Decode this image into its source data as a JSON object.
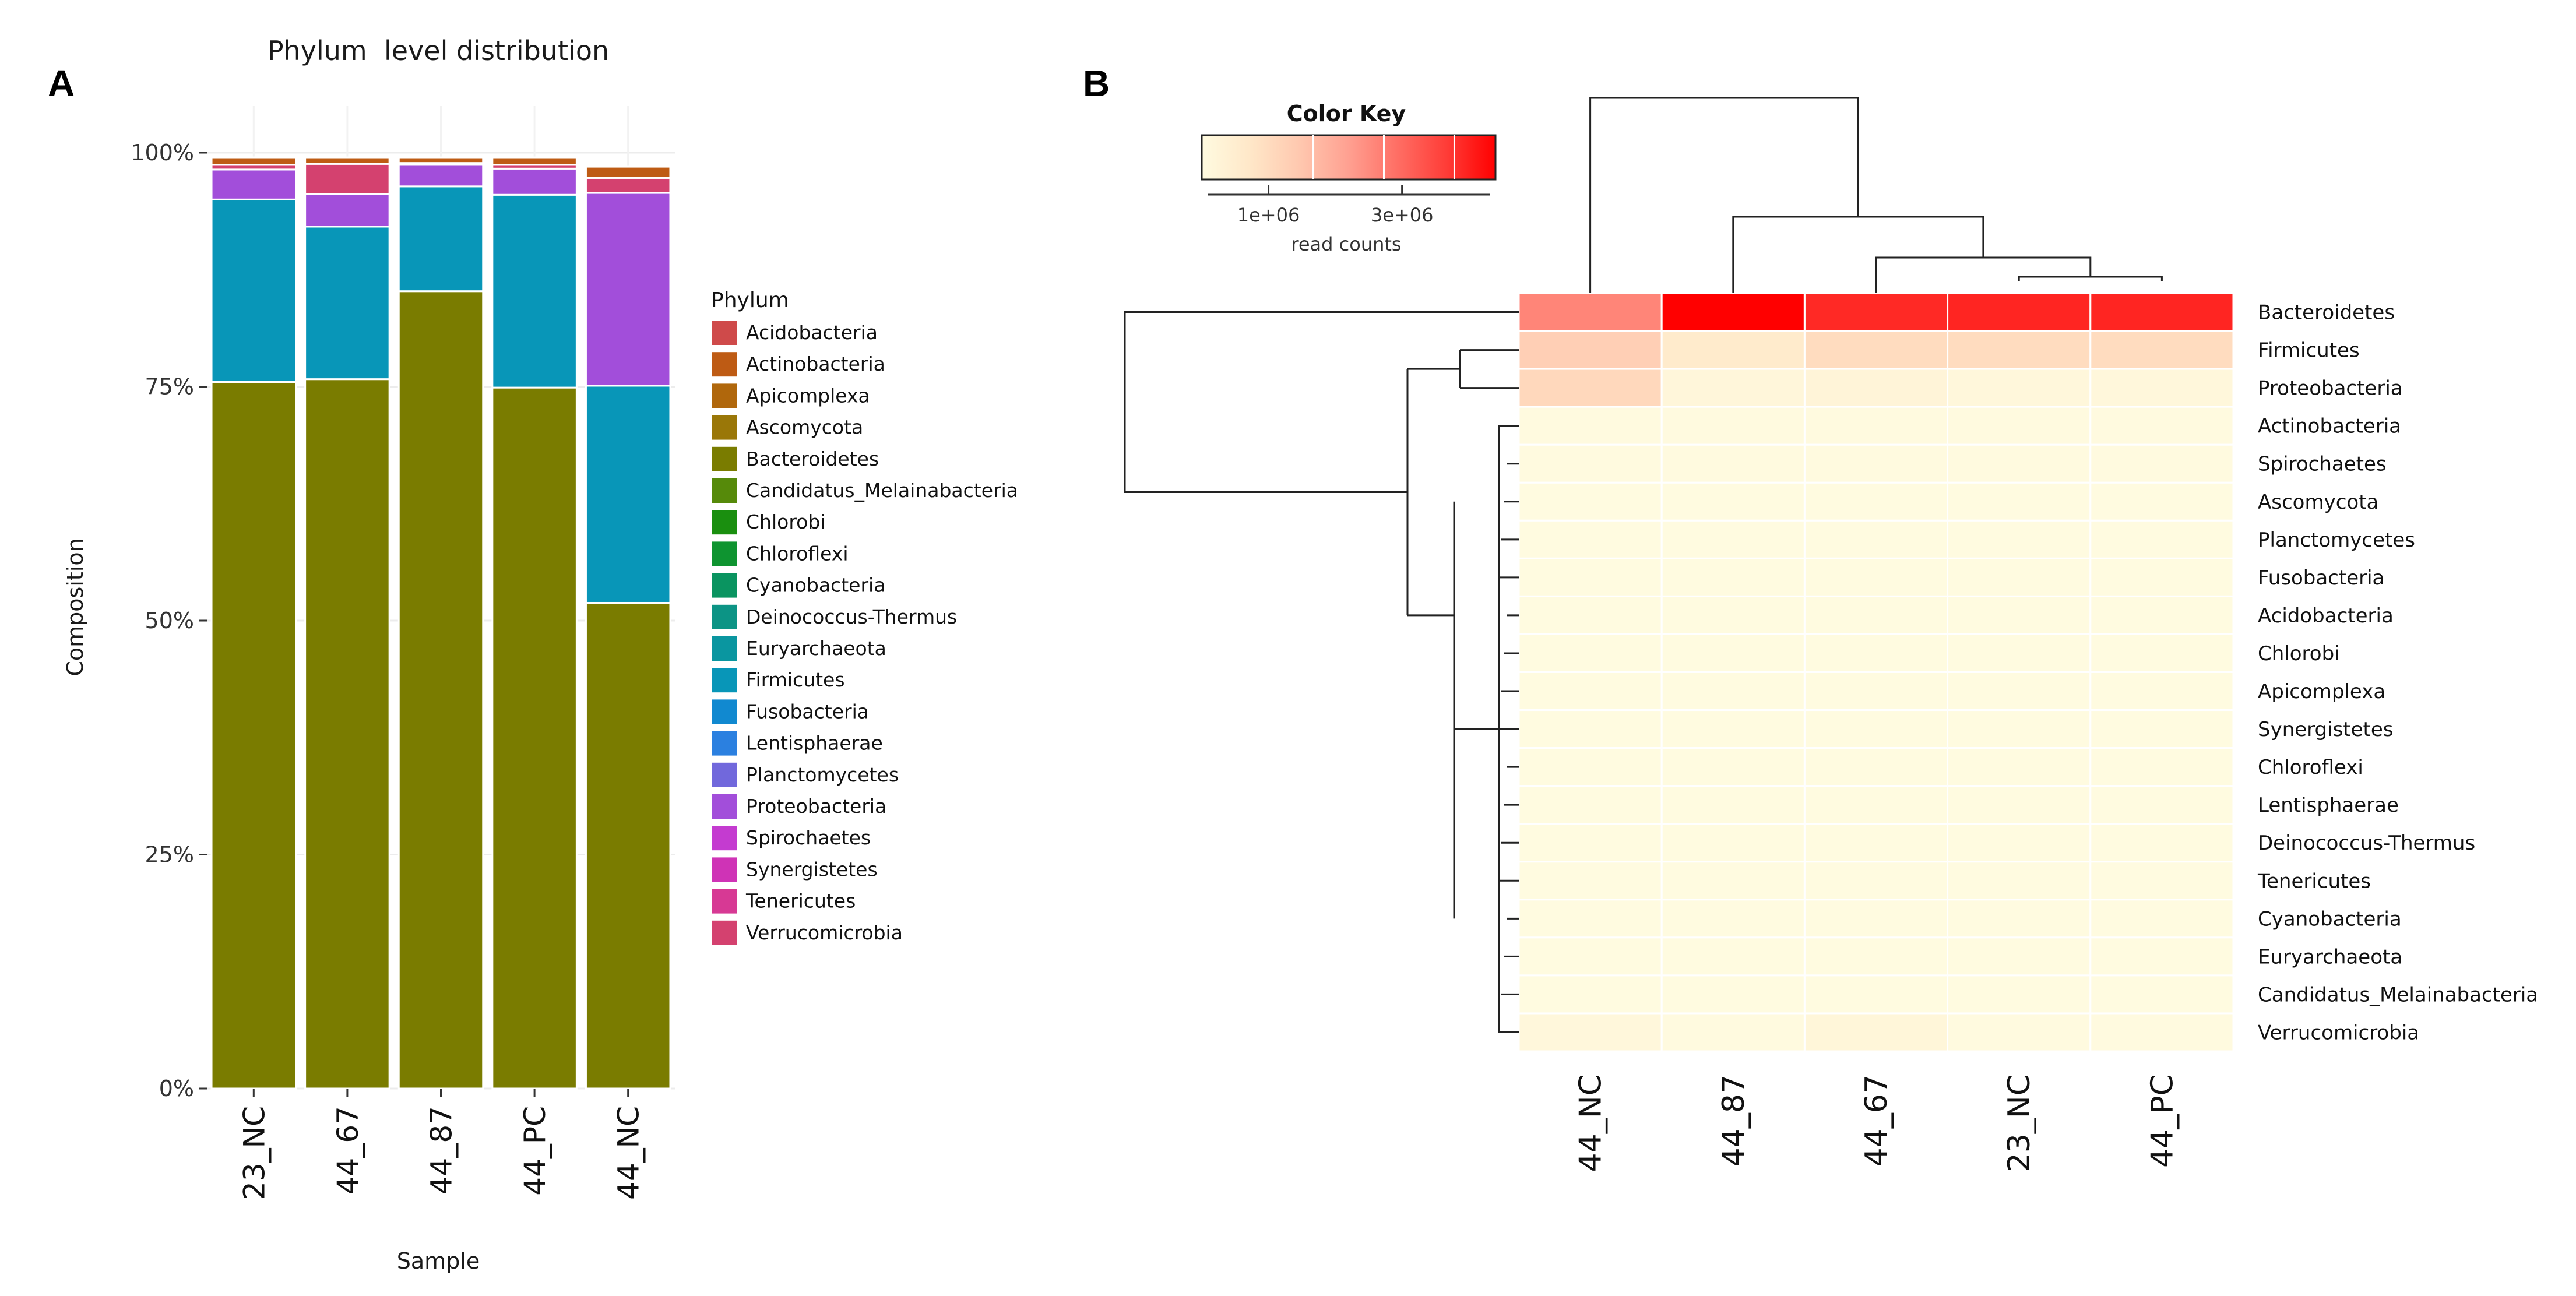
{
  "chart_data": [
    {
      "panel": "A",
      "type": "bar",
      "stacked": true,
      "title": "Phylum  level distribution",
      "xlabel": "Sample",
      "ylabel": "Composition",
      "ylim": [
        0,
        100
      ],
      "yticks": [
        "0%",
        "25%",
        "50%",
        "75%",
        "100%"
      ],
      "categories": [
        "23_NC",
        "44_67",
        "44_87",
        "44_PC",
        "44_NC"
      ],
      "legend_title": "Phylum",
      "legend": [
        {
          "name": "Acidobacteria",
          "color": "#CF4A4A"
        },
        {
          "name": "Actinobacteria",
          "color": "#BE5B14"
        },
        {
          "name": "Apicomplexa",
          "color": "#B0670C"
        },
        {
          "name": "Ascomycota",
          "color": "#9A7708"
        },
        {
          "name": "Bacteroidetes",
          "color": "#7A7C00"
        },
        {
          "name": "Candidatus_Melainabacteria",
          "color": "#568A0A"
        },
        {
          "name": "Chlorobi",
          "color": "#1A8F0F"
        },
        {
          "name": "Chloroflexi",
          "color": "#0E9430"
        },
        {
          "name": "Cyanobacteria",
          "color": "#0A9460"
        },
        {
          "name": "Deinococcus-Thermus",
          "color": "#0C9485"
        },
        {
          "name": "Euryarchaeota",
          "color": "#0A96A0"
        },
        {
          "name": "Firmicutes",
          "color": "#0896B8"
        },
        {
          "name": "Fusobacteria",
          "color": "#1189D0"
        },
        {
          "name": "Lentisphaerae",
          "color": "#2B80E0"
        },
        {
          "name": "Planctomycetes",
          "color": "#7168DC"
        },
        {
          "name": "Proteobacteria",
          "color": "#A24EDA"
        },
        {
          "name": "Spirochaetes",
          "color": "#C43BD0"
        },
        {
          "name": "Synergistetes",
          "color": "#CF33B6"
        },
        {
          "name": "Tenericutes",
          "color": "#D73994"
        },
        {
          "name": "Verrucomicrobia",
          "color": "#D4416F"
        }
      ],
      "series": [
        {
          "name": "Bacteroidetes",
          "values": [
            75.5,
            75.8,
            85.2,
            74.9,
            51.9
          ]
        },
        {
          "name": "Firmicutes",
          "values": [
            19.5,
            16.3,
            11.2,
            20.6,
            23.2
          ]
        },
        {
          "name": "Proteobacteria",
          "values": [
            3.2,
            3.5,
            2.3,
            2.8,
            20.6
          ]
        },
        {
          "name": "Verrucomicrobia",
          "values": [
            0.5,
            3.2,
            0.2,
            0.4,
            1.6
          ]
        },
        {
          "name": "Actinobacteria",
          "values": [
            0.8,
            0.7,
            0.6,
            0.8,
            1.2
          ]
        }
      ]
    },
    {
      "panel": "B",
      "type": "heatmap",
      "columns": [
        "44_NC",
        "44_87",
        "44_67",
        "23_NC",
        "44_PC"
      ],
      "rows": [
        "Bacteroidetes",
        "Firmicutes",
        "Proteobacteria",
        "Actinobacteria",
        "Spirochaetes",
        "Ascomycota",
        "Planctomycetes",
        "Fusobacteria",
        "Acidobacteria",
        "Chlorobi",
        "Apicomplexa",
        "Synergistetes",
        "Chloroflexi",
        "Lentisphaerae",
        "Deinococcus-Thermus",
        "Tenericutes",
        "Cyanobacteria",
        "Euryarchaeota",
        "Candidatus_Melainabacteria",
        "Verrucomicrobia"
      ],
      "values": [
        [
          2600000,
          4400000,
          3900000,
          3950000,
          3950000
        ],
        [
          1300000,
          600000,
          1000000,
          1000000,
          1000000
        ],
        [
          1100000,
          180000,
          250000,
          150000,
          150000
        ],
        [
          30000,
          30000,
          30000,
          30000,
          30000
        ],
        [
          20000,
          20000,
          20000,
          20000,
          20000
        ],
        [
          15000,
          15000,
          15000,
          15000,
          15000
        ],
        [
          15000,
          15000,
          15000,
          15000,
          15000
        ],
        [
          10000,
          10000,
          10000,
          10000,
          10000
        ],
        [
          10000,
          10000,
          10000,
          10000,
          10000
        ],
        [
          10000,
          10000,
          10000,
          10000,
          10000
        ],
        [
          10000,
          10000,
          10000,
          10000,
          10000
        ],
        [
          10000,
          10000,
          10000,
          10000,
          10000
        ],
        [
          10000,
          10000,
          10000,
          10000,
          10000
        ],
        [
          10000,
          10000,
          10000,
          10000,
          10000
        ],
        [
          10000,
          10000,
          10000,
          10000,
          10000
        ],
        [
          10000,
          10000,
          10000,
          10000,
          10000
        ],
        [
          10000,
          10000,
          10000,
          10000,
          10000
        ],
        [
          10000,
          10000,
          10000,
          10000,
          10000
        ],
        [
          10000,
          10000,
          10000,
          10000,
          10000
        ],
        [
          150000,
          20000,
          200000,
          20000,
          20000
        ]
      ],
      "color_key": {
        "title": "Color Key",
        "label": "read counts",
        "ticks": [
          "1e+06",
          "3e+06"
        ],
        "tick_values": [
          1000000,
          3000000
        ],
        "range": [
          0,
          4400000
        ],
        "low_color": "#FFFBE0",
        "high_color": "#FF0000"
      }
    }
  ]
}
